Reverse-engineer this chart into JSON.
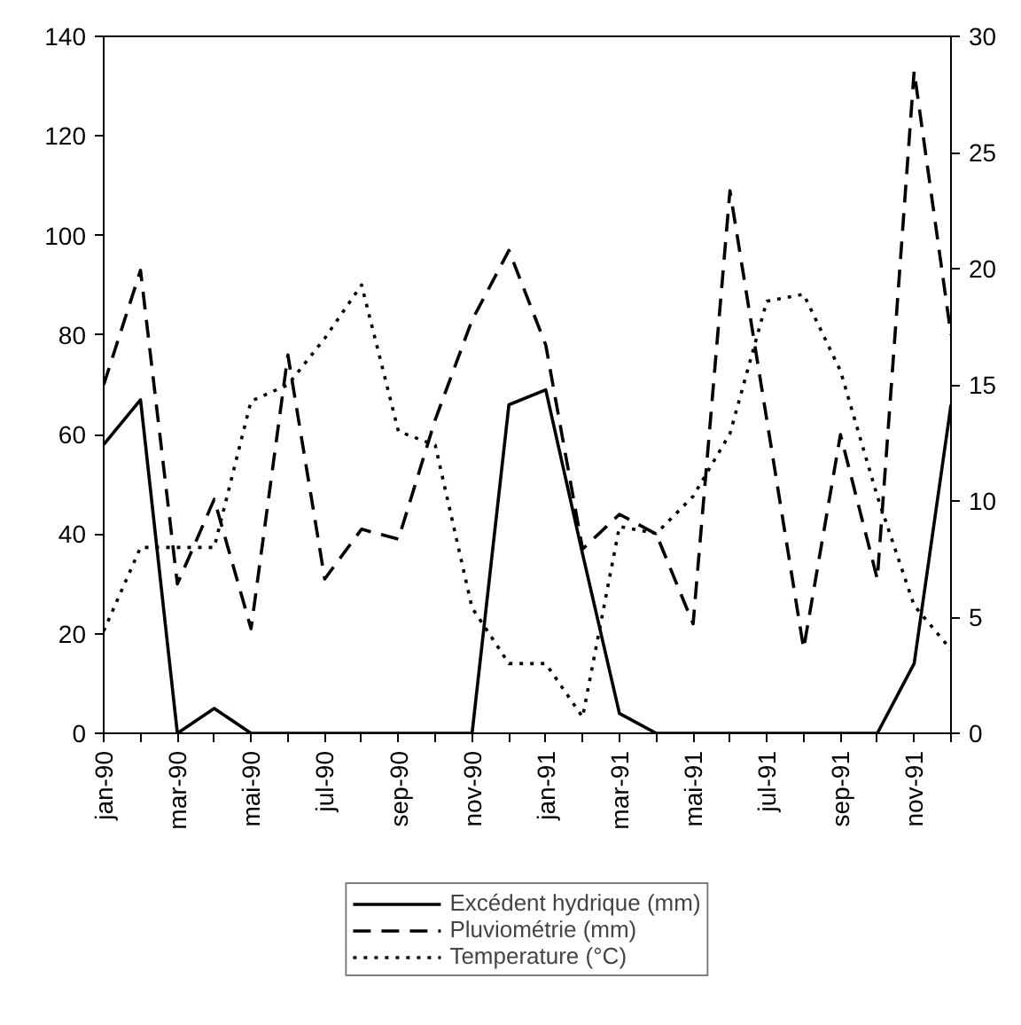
{
  "chart_data": {
    "type": "line",
    "categories": [
      "jan-90",
      null,
      "mar-90",
      null,
      "mai-90",
      null,
      "jul-90",
      null,
      "sep-90",
      null,
      "nov-90",
      null,
      "jan-91",
      null,
      "mar-91",
      null,
      "mai-91",
      null,
      "jul-91",
      null,
      "sep-91",
      null,
      "nov-91",
      null
    ],
    "series": [
      {
        "name": "Excédent hydrique (mm)",
        "color": "#000000",
        "line_style": "solid",
        "values": [
          58,
          67,
          0,
          5,
          0,
          0,
          0,
          0,
          0,
          0,
          0,
          66,
          69,
          36,
          4,
          0,
          0,
          0,
          0,
          0,
          0,
          0,
          14,
          66
        ]
      },
      {
        "name": "Pluviométrie (mm)",
        "color": "#000000",
        "line_style": "dashed",
        "values": [
          70,
          93,
          30,
          47,
          21,
          76,
          31,
          41,
          39,
          63,
          83,
          97,
          78,
          37,
          44,
          40,
          22,
          109,
          63,
          17,
          60,
          31,
          133,
          80
        ]
      },
      {
        "name": "Temperature (°C)",
        "color": "#000000",
        "line_style": "dotted",
        "axis": "y2",
        "values": [
          4.4,
          8.0,
          8.0,
          8.0,
          14.3,
          15.0,
          17.0,
          19.3,
          13.0,
          12.4,
          5.4,
          3.0,
          3.0,
          0.7,
          8.9,
          8.6,
          10.2,
          12.9,
          18.6,
          18.9,
          15.6,
          10.2,
          5.5,
          3.6
        ]
      }
    ],
    "ylim": [
      0,
      140
    ],
    "yticks": [
      0,
      20,
      40,
      60,
      80,
      100,
      120,
      140
    ],
    "y2lim": [
      0,
      30
    ],
    "y2ticks": [
      0,
      5,
      10,
      15,
      20,
      25,
      30
    ],
    "grid": false,
    "legend": "bottom",
    "marker": "none"
  }
}
